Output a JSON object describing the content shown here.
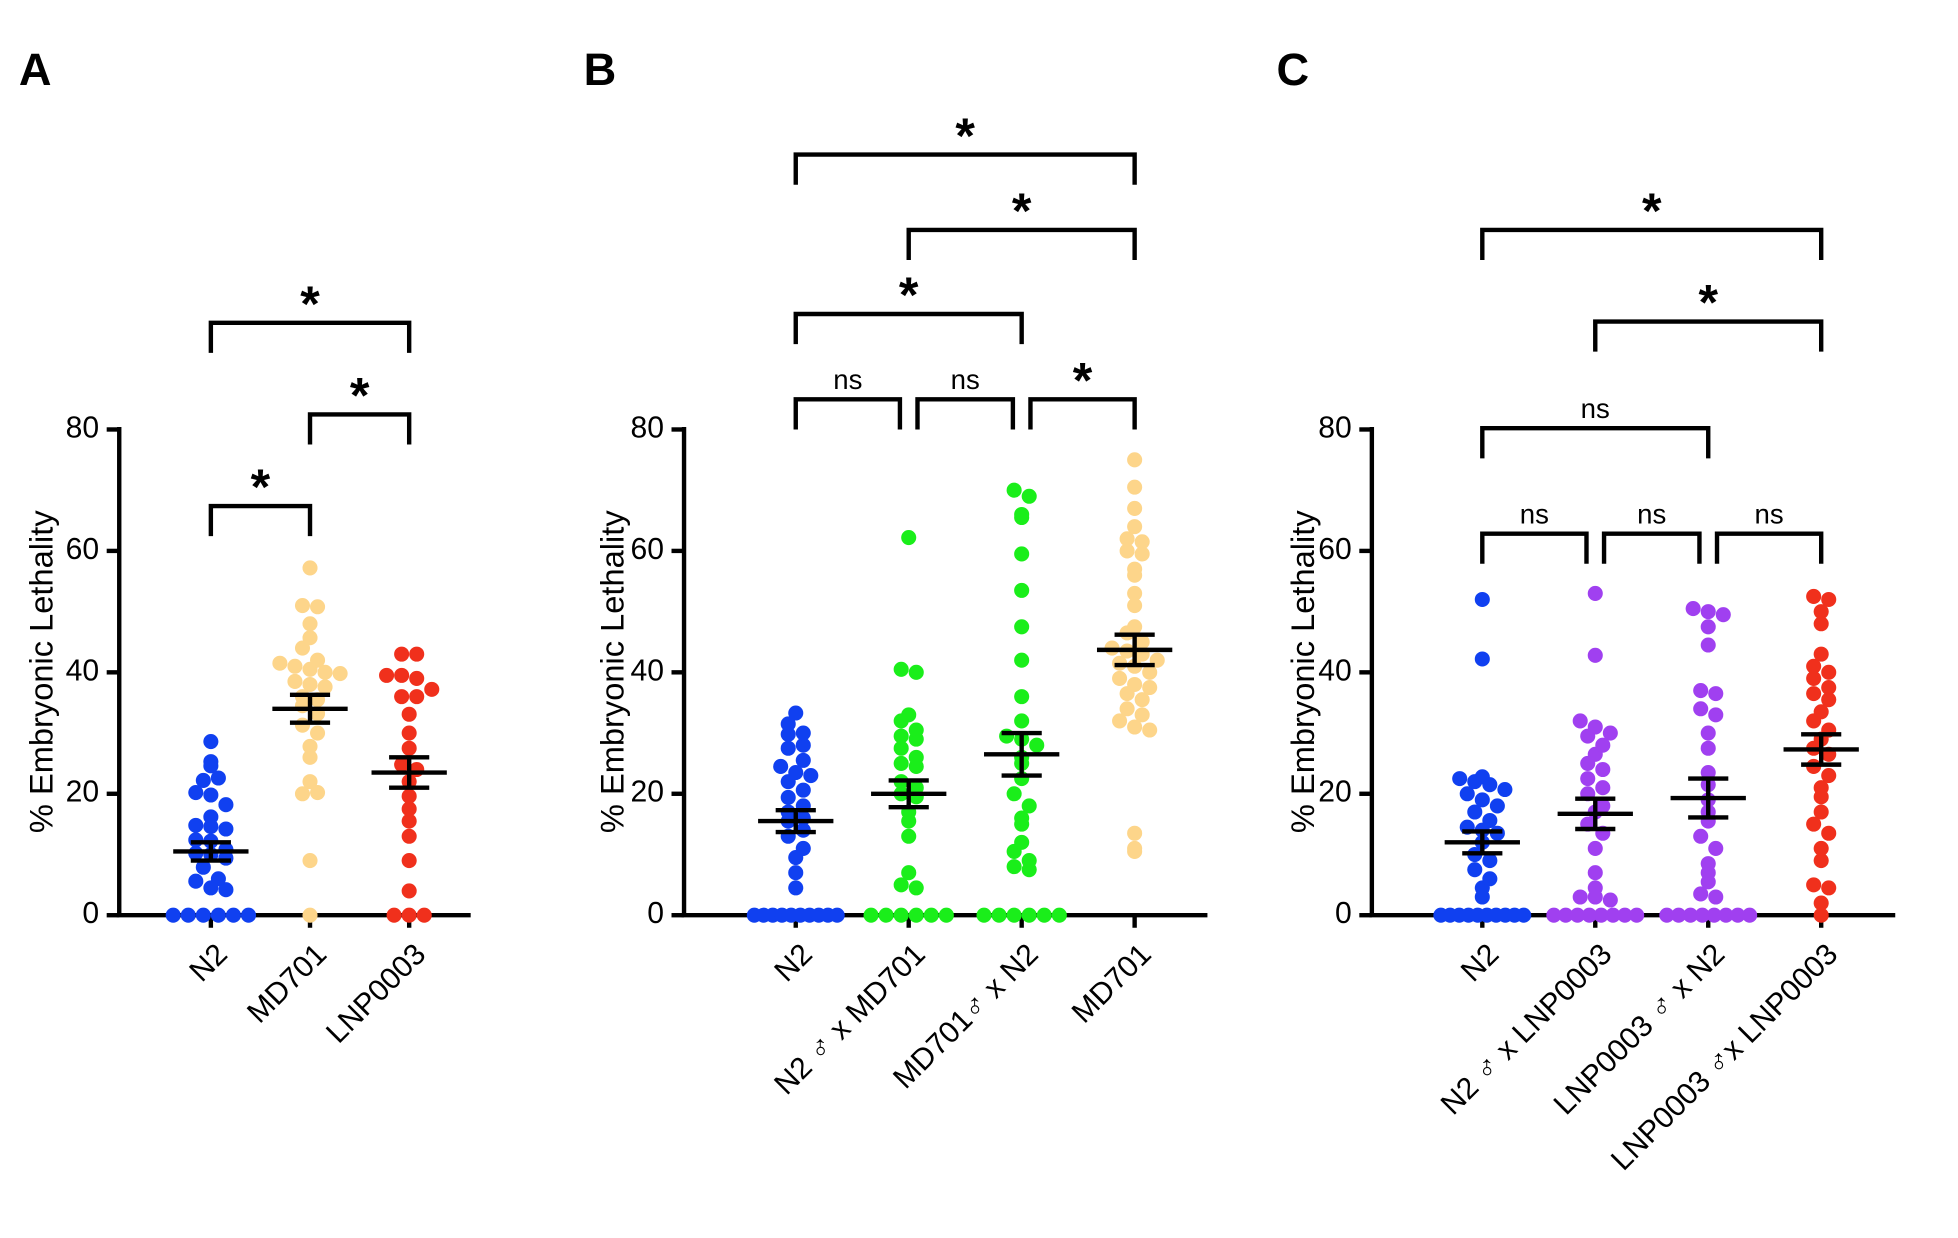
{
  "chart_data": [
    {
      "type": "dot",
      "panel": "A",
      "ylabel": "% Embryonic Lethality",
      "ylim": [
        0,
        80
      ],
      "yticks": [
        0,
        20,
        40,
        60,
        80
      ],
      "series": [
        {
          "name": "N2",
          "color": "#1040f0",
          "mean": 10.5,
          "sem": 1.5,
          "values": [
            28.6,
            25.3,
            24.6,
            22.2,
            22.6,
            20.2,
            19.8,
            18.2,
            16.2,
            14.8,
            14.6,
            14.2,
            12.4,
            12.2,
            10.8,
            10.2,
            10,
            9.4,
            7.9,
            6,
            5.6,
            4.5,
            4.2,
            0,
            0,
            0,
            0,
            0,
            0
          ]
        },
        {
          "name": "MD701",
          "color": "#fdd58a",
          "mean": 34,
          "sem": 2.3,
          "values": [
            57.2,
            51,
            50.8,
            48,
            45.7,
            44,
            42,
            41.5,
            41,
            40.5,
            40,
            39.8,
            38.5,
            38,
            37.6,
            36,
            35.5,
            34.5,
            33.2,
            31.3,
            30,
            27.8,
            26,
            22,
            20,
            20.2,
            9,
            0
          ]
        },
        {
          "name": "LNP0003",
          "color": "#f0301c",
          "mean": 23.5,
          "sem": 2.5,
          "values": [
            43,
            43,
            39.5,
            39.5,
            39,
            37.2,
            36,
            36,
            33.1,
            30,
            27.5,
            24.8,
            24,
            22,
            19.6,
            17.5,
            15.5,
            13,
            9,
            4,
            0,
            0,
            0
          ]
        }
      ],
      "comparisons": [
        {
          "between": [
            "N2",
            "MD701"
          ],
          "label": "*"
        },
        {
          "between": [
            "MD701",
            "LNP0003"
          ],
          "label": "*"
        },
        {
          "between": [
            "N2",
            "LNP0003"
          ],
          "label": "*"
        }
      ]
    },
    {
      "type": "dot",
      "panel": "B",
      "ylabel": "% Embryonic Lethality",
      "ylim": [
        0,
        80
      ],
      "yticks": [
        0,
        20,
        40,
        60,
        80
      ],
      "series": [
        {
          "name": "N2",
          "color": "#1040f0",
          "mean": 15.5,
          "sem": 1.8,
          "values": [
            33.3,
            31.5,
            30,
            29.8,
            28,
            27.5,
            25.5,
            24.5,
            23.5,
            23,
            22,
            20.6,
            19.4,
            18,
            17,
            16,
            15.5,
            14,
            13,
            11,
            9.5,
            7,
            4.5,
            0,
            0,
            0,
            0,
            0,
            0,
            0,
            0,
            0,
            0
          ]
        },
        {
          "name": "N2 ♂ x MD701",
          "color": "#1aee1a",
          "mean": 20,
          "sem": 2.2,
          "values": [
            62.2,
            40.5,
            40,
            33,
            32,
            30.5,
            29.5,
            29,
            27.5,
            26,
            25,
            24.5,
            22,
            21,
            20,
            19.5,
            17,
            15.5,
            13,
            7,
            5,
            4.5,
            0,
            0,
            0,
            0,
            0,
            0
          ]
        },
        {
          "name": "MD701♂ x N2",
          "color": "#1aee1a",
          "mean": 26.5,
          "sem": 3.5,
          "values": [
            70,
            69,
            66,
            65.5,
            59.5,
            53.5,
            47.5,
            42,
            36,
            32,
            29.5,
            29,
            28,
            26,
            25,
            22.5,
            20,
            18,
            16,
            15,
            12,
            10.5,
            9,
            8,
            7.5,
            0,
            0,
            0,
            0,
            0,
            0
          ]
        },
        {
          "name": "MD701",
          "color": "#fdd58a",
          "mean": 43.7,
          "sem": 2.5,
          "values": [
            75,
            70.5,
            67,
            64,
            62,
            61.5,
            60,
            59.5,
            57,
            56,
            53,
            51,
            47.5,
            46.5,
            45,
            44,
            43.5,
            43,
            42,
            41.5,
            41,
            40,
            39,
            38,
            37.5,
            36.5,
            35.5,
            34,
            33,
            32,
            31,
            30.5,
            13.5,
            11,
            10.5
          ]
        }
      ],
      "comparisons": [
        {
          "between": [
            "N2",
            "N2 ♂ x MD701"
          ],
          "label": "ns"
        },
        {
          "between": [
            "N2 ♂ x MD701",
            "MD701♂ x N2"
          ],
          "label": "ns"
        },
        {
          "between": [
            "MD701♂ x N2",
            "MD701"
          ],
          "label": "*"
        },
        {
          "between": [
            "N2",
            "MD701♂ x N2"
          ],
          "label": "*"
        },
        {
          "between": [
            "N2 ♂ x MD701",
            "MD701"
          ],
          "label": "*"
        },
        {
          "between": [
            "N2",
            "MD701"
          ],
          "label": "*"
        }
      ]
    },
    {
      "type": "dot",
      "panel": "C",
      "ylabel": "% Embryonic Lethality",
      "ylim": [
        0,
        80
      ],
      "yticks": [
        0,
        20,
        40,
        60,
        80
      ],
      "series": [
        {
          "name": "N2",
          "color": "#1040f0",
          "mean": 12,
          "sem": 1.8,
          "values": [
            52,
            42.2,
            22.8,
            22.5,
            22,
            21.5,
            20.7,
            20,
            19,
            18,
            17,
            15.6,
            14.5,
            14,
            13.5,
            12,
            10,
            9,
            7.5,
            6,
            4.5,
            3,
            0,
            0,
            0,
            0,
            0,
            0,
            0,
            0,
            0,
            0
          ]
        },
        {
          "name": "N2 ♂ x LNP0003",
          "color": "#a040f0",
          "mean": 16.7,
          "sem": 2.5,
          "values": [
            53,
            42.8,
            32,
            31,
            30,
            29.5,
            28,
            26.5,
            25,
            24,
            22.5,
            21,
            20,
            18,
            17,
            15,
            13.5,
            11,
            7,
            4.5,
            3,
            3,
            2.5,
            0,
            0,
            0,
            0,
            0,
            0,
            0,
            0
          ]
        },
        {
          "name": "LNP0003 ♂ x N2",
          "color": "#a040f0",
          "mean": 19.3,
          "sem": 3.2,
          "values": [
            50.5,
            50,
            49.5,
            47.5,
            44.5,
            37,
            36.5,
            34,
            33,
            30,
            27.5,
            23.5,
            21.5,
            19,
            17,
            15.5,
            13,
            11,
            8.5,
            7,
            5.5,
            3.5,
            3,
            0,
            0,
            0,
            0,
            0,
            0,
            0,
            0
          ]
        },
        {
          "name": "LNP0003 ♂x LNP0003",
          "color": "#f0301c",
          "mean": 27.3,
          "sem": 2.5,
          "values": [
            52.5,
            52,
            50,
            48,
            43,
            41,
            40,
            39,
            37.5,
            36.5,
            35.5,
            33.5,
            32,
            30.5,
            29,
            27.5,
            26.5,
            24.5,
            23,
            21,
            19.5,
            17,
            15,
            13.5,
            11,
            9,
            5,
            4.5,
            2,
            0
          ]
        }
      ],
      "comparisons": [
        {
          "between": [
            "N2",
            "N2 ♂ x LNP0003"
          ],
          "label": "ns"
        },
        {
          "between": [
            "N2 ♂ x LNP0003",
            "LNP0003 ♂ x N2"
          ],
          "label": "ns"
        },
        {
          "between": [
            "LNP0003 ♂ x N2",
            "LNP0003 ♂x LNP0003"
          ],
          "label": "ns"
        },
        {
          "between": [
            "N2",
            "LNP0003 ♂ x N2"
          ],
          "label": "ns"
        },
        {
          "between": [
            "N2 ♂ x LNP0003",
            "LNP0003 ♂x LNP0003"
          ],
          "label": "*"
        },
        {
          "between": [
            "N2",
            "LNP0003 ♂x LNP0003"
          ],
          "label": "*"
        }
      ]
    }
  ]
}
